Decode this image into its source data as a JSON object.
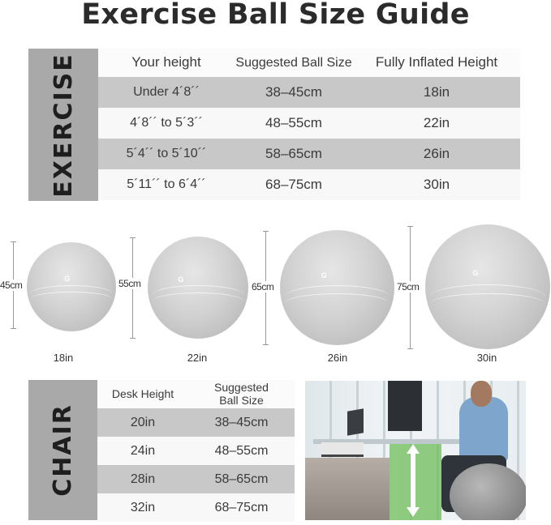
{
  "title": "Exercise Ball Size Guide",
  "exercise": {
    "label": "EXERCISE",
    "headers": [
      "Your height",
      "Suggested Ball Size",
      "Fully Inflated Height"
    ],
    "rows": [
      [
        "Under 4´8´´",
        "38–45cm",
        "18in"
      ],
      [
        "4´8´´ to 5´3´´",
        "48–55cm",
        "22in"
      ],
      [
        "5´4´´ to 5´10´´",
        "58–65cm",
        "26in"
      ],
      [
        "5´11´´ to 6´4´´",
        "68–75cm",
        "30in"
      ]
    ]
  },
  "balls": [
    {
      "diameter": "45cm",
      "height": "18in"
    },
    {
      "diameter": "55cm",
      "height": "22in"
    },
    {
      "diameter": "65cm",
      "height": "26in"
    },
    {
      "diameter": "75cm",
      "height": "30in"
    }
  ],
  "ball_logo": "G",
  "chair": {
    "label": "CHAIR",
    "headers": [
      "Desk Height",
      "Suggested Ball Size"
    ],
    "rows": [
      [
        "20in",
        "38–45cm"
      ],
      [
        "24in",
        "48–55cm"
      ],
      [
        "28in",
        "58–65cm"
      ],
      [
        "32in",
        "68–75cm"
      ]
    ]
  },
  "colors": {
    "band_gray": "#c8c8c8",
    "side_gray": "#a9a9a9",
    "highlight_green": "#7fc56f"
  }
}
